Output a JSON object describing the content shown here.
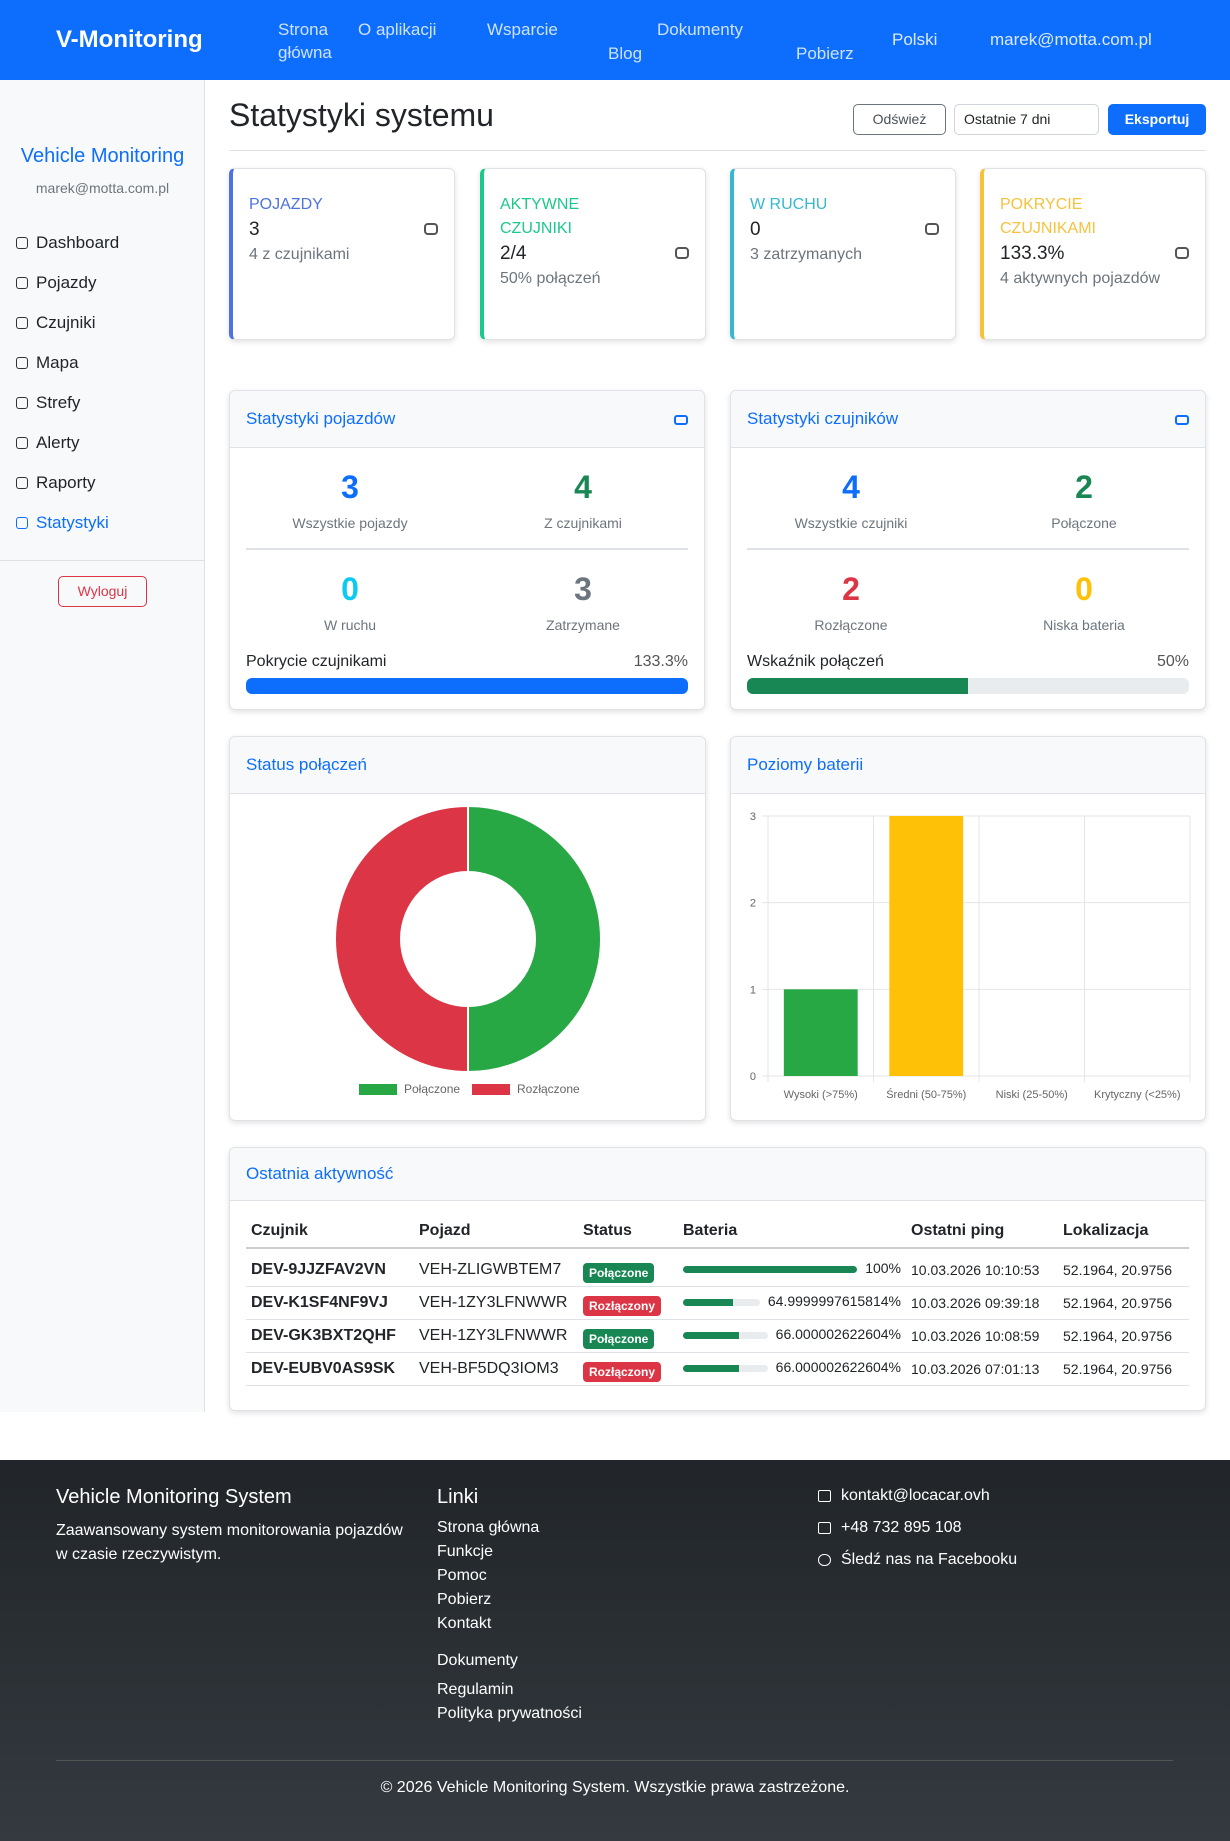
{
  "navbar": {
    "brand": "V-Monitoring",
    "items": [
      "Strona główna",
      "O aplikacji",
      "Wsparcie",
      "Blog",
      "Dokumenty",
      "Pobierz"
    ],
    "language": "Polski",
    "user": "marek@motta.com.pl"
  },
  "sidebar": {
    "title": "Vehicle Monitoring",
    "email": "marek@motta.com.pl",
    "items": [
      "Dashboard",
      "Pojazdy",
      "Czujniki",
      "Mapa",
      "Strefy",
      "Alerty",
      "Raporty",
      "Statystyki"
    ],
    "active": "Statystyki",
    "logout": "Wyloguj"
  },
  "header": {
    "title": "Statystyki systemu",
    "refresh": "Odśwież",
    "period": "Ostatnie 7 dni",
    "export": "Eksportuj"
  },
  "cards": [
    {
      "label": "POJAZDY",
      "value": "3",
      "sub": "4 z czujnikami",
      "color": "#4e73df"
    },
    {
      "label": "AKTYWNE CZUJNIKI",
      "value": "2/4",
      "sub": "50% połączeń",
      "color": "#1cc88a"
    },
    {
      "label": "W RUCHU",
      "value": "0",
      "sub": "3 zatrzymanych",
      "color": "#36b9cc"
    },
    {
      "label": "POKRYCIE CZUJNIKAMI",
      "value": "133.3%",
      "sub": "4 aktywnych pojazdów",
      "color": "#f6c23e"
    }
  ],
  "vehicle_stats": {
    "title": "Statystyki pojazdów",
    "items": [
      {
        "value": 3,
        "label": "Wszystkie pojazdy",
        "color": "#0d6efd"
      },
      {
        "value": 4,
        "label": "Z czujnikami",
        "color": "#198754"
      },
      {
        "value": 0,
        "label": "W ruchu",
        "color": "#0dcaf0"
      },
      {
        "value": 3,
        "label": "Zatrzymane",
        "color": "#6c757d"
      }
    ],
    "progress": {
      "label": "Pokrycie czujnikami",
      "value": 133.3,
      "value_label": "133.3%",
      "color": "#0d6efd"
    }
  },
  "sensor_stats": {
    "title": "Statystyki czujników",
    "items": [
      {
        "value": 4,
        "label": "Wszystkie czujniki",
        "color": "#0d6efd"
      },
      {
        "value": 2,
        "label": "Połączone",
        "color": "#198754"
      },
      {
        "value": 2,
        "label": "Rozłączone",
        "color": "#dc3545"
      },
      {
        "value": 0,
        "label": "Niska bateria",
        "color": "#ffc107"
      }
    ],
    "progress": {
      "label": "Wskaźnik połączeń",
      "value": 50,
      "value_label": "50%",
      "color": "#198754"
    }
  },
  "connection_chart": {
    "type": "doughnut",
    "title": "Status połączeń",
    "categories": [
      "Połączone",
      "Rozłączone"
    ],
    "values": [
      2,
      2
    ],
    "colors": [
      "#28a745",
      "#dc3545"
    ]
  },
  "battery_chart": {
    "type": "bar",
    "title": "Poziomy baterii",
    "categories": [
      "Wysoki (>75%)",
      "Średni (50-75%)",
      "Niski (25-50%)",
      "Krytyczny (<25%)"
    ],
    "values": [
      1,
      3,
      0,
      0
    ],
    "colors": [
      "#28a745",
      "#ffc107",
      "#fd7e14",
      "#dc3545"
    ],
    "ylim": [
      0,
      3
    ],
    "yticks": [
      0,
      1,
      2,
      3
    ],
    "grid": true
  },
  "activity": {
    "title": "Ostatnia aktywność",
    "columns": [
      "Czujnik",
      "Pojazd",
      "Status",
      "Bateria",
      "Ostatni ping",
      "Lokalizacja"
    ],
    "rows": [
      {
        "sensor": "DEV-9JJZFAV2VN",
        "vehicle": "VEH-ZLIGWBTEM7",
        "status": "Połączone",
        "status_color": "#198754",
        "battery": {
          "value": 100,
          "label": "100%"
        },
        "ping": "10.03.2026 10:10:53",
        "location": "52.1964, 20.9756"
      },
      {
        "sensor": "DEV-K1SF4NF9VJ",
        "vehicle": "VEH-1ZY3LFNWWR",
        "status": "Rozłączony",
        "status_color": "#dc3545",
        "battery": {
          "value": 64.9999997615814,
          "label": "64.9999997615814%"
        },
        "ping": "10.03.2026 09:39:18",
        "location": "52.1964, 20.9756"
      },
      {
        "sensor": "DEV-GK3BXT2QHF",
        "vehicle": "VEH-1ZY3LFNWWR",
        "status": "Połączone",
        "status_color": "#198754",
        "battery": {
          "value": 66.000002622604,
          "label": "66.000002622604%"
        },
        "ping": "10.03.2026 10:08:59",
        "location": "52.1964, 20.9756"
      },
      {
        "sensor": "DEV-EUBV0AS9SK",
        "vehicle": "VEH-BF5DQ3IOM3",
        "status": "Rozłączony",
        "status_color": "#dc3545",
        "battery": {
          "value": 66.000002622604,
          "label": "66.000002622604%"
        },
        "ping": "10.03.2026 07:01:13",
        "location": "52.1964, 20.9756"
      }
    ]
  },
  "footer": {
    "title": "Vehicle Monitoring System",
    "description": "Zaawansowany system monitorowania pojazdów w czasie rzeczywistym.",
    "links_title": "Linki",
    "links": [
      "Strona główna",
      "Funkcje",
      "Pomoc",
      "Pobierz",
      "Kontakt"
    ],
    "docs_title": "Dokumenty",
    "docs": [
      "Regulamin",
      "Polityka prywatności"
    ],
    "contact": [
      "kontakt@locacar.ovh",
      "+48 732 895 108",
      "Śledź nas na Facebooku"
    ],
    "copyright": "© 2026 Vehicle Monitoring System. Wszystkie prawa zastrzeżone."
  }
}
